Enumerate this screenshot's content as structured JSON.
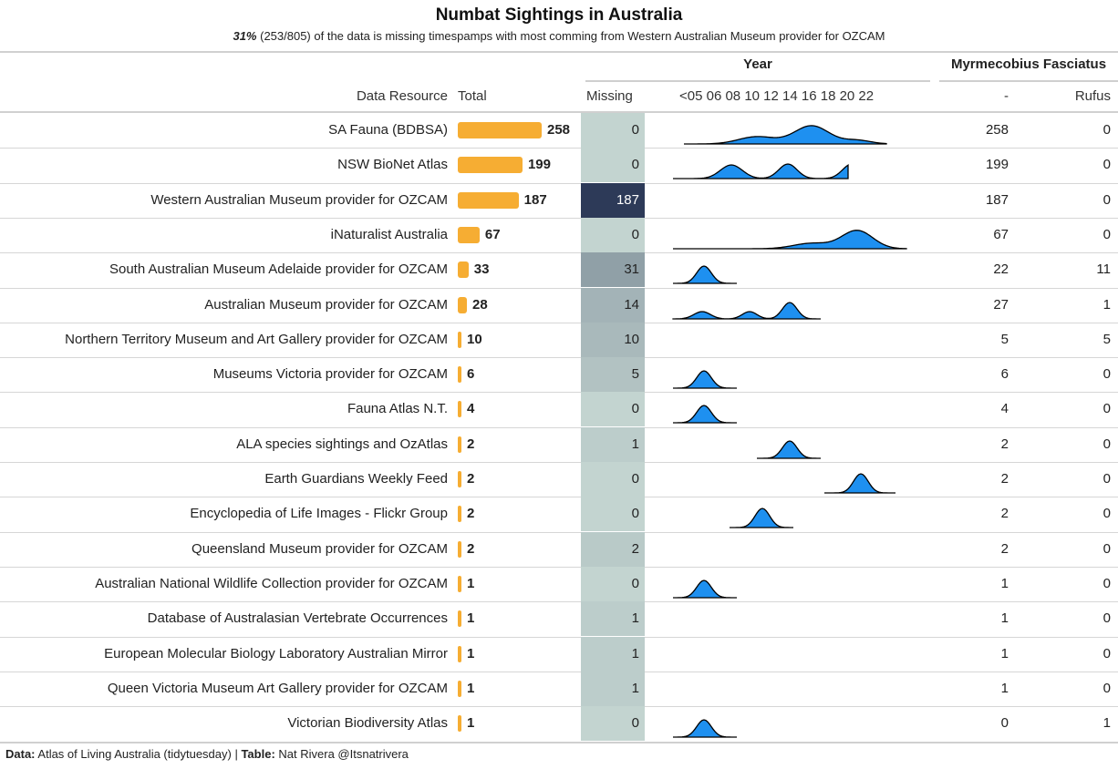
{
  "title": "Numbat Sightings in Australia",
  "subtitle": {
    "pct": "31%",
    "rest": " (253/805) of the data is missing timespamps with most comming from Western Australian Museum provider for OZCAM"
  },
  "headers": {
    "group_year": "Year",
    "group_species": "Myrmecobius Fasciatus",
    "data_resource": "Data Resource",
    "total": "Total",
    "missing": "Missing",
    "year_ticks": "<05 06 08 10 12 14 16 18 20 22",
    "dash": "-",
    "rufus": "Rufus"
  },
  "colors": {
    "bar": "#f6ad33",
    "spark_fill": "#1e90f0",
    "missing_base": "#c3d4d0",
    "missing_max": "#2d3a58"
  },
  "chart_data": {
    "type": "table",
    "title": "Numbat Sightings in Australia",
    "columns": [
      "Data Resource",
      "Total",
      "Missing",
      "Year",
      "-",
      "Rufus"
    ],
    "rows": [
      {
        "name": "SA Fauna (BDBSA)",
        "total": 258,
        "missing": 0,
        "dash": 258,
        "rufus": 0
      },
      {
        "name": "NSW BioNet Atlas",
        "total": 199,
        "missing": 0,
        "dash": 199,
        "rufus": 0
      },
      {
        "name": "Western Australian Museum provider for OZCAM",
        "total": 187,
        "missing": 187,
        "dash": 187,
        "rufus": 0
      },
      {
        "name": "iNaturalist Australia",
        "total": 67,
        "missing": 0,
        "dash": 67,
        "rufus": 0
      },
      {
        "name": "South Australian Museum Adelaide provider for OZCAM",
        "total": 33,
        "missing": 31,
        "dash": 22,
        "rufus": 11
      },
      {
        "name": "Australian Museum provider for OZCAM",
        "total": 28,
        "missing": 14,
        "dash": 27,
        "rufus": 1
      },
      {
        "name": "Northern Territory Museum and Art Gallery provider for OZCAM",
        "total": 10,
        "missing": 10,
        "dash": 5,
        "rufus": 5
      },
      {
        "name": "Museums Victoria provider for OZCAM",
        "total": 6,
        "missing": 5,
        "dash": 6,
        "rufus": 0
      },
      {
        "name": "Fauna Atlas N.T.",
        "total": 4,
        "missing": 0,
        "dash": 4,
        "rufus": 0
      },
      {
        "name": "ALA species sightings and OzAtlas",
        "total": 2,
        "missing": 1,
        "dash": 2,
        "rufus": 0
      },
      {
        "name": "Earth Guardians Weekly Feed",
        "total": 2,
        "missing": 0,
        "dash": 2,
        "rufus": 0
      },
      {
        "name": "Encyclopedia of Life Images - Flickr Group",
        "total": 2,
        "missing": 0,
        "dash": 2,
        "rufus": 0
      },
      {
        "name": "Queensland Museum provider for OZCAM",
        "total": 2,
        "missing": 2,
        "dash": 2,
        "rufus": 0
      },
      {
        "name": "Australian National Wildlife Collection provider for OZCAM",
        "total": 1,
        "missing": 0,
        "dash": 1,
        "rufus": 0
      },
      {
        "name": "Database of Australasian Vertebrate Occurrences",
        "total": 1,
        "missing": 1,
        "dash": 1,
        "rufus": 0
      },
      {
        "name": "European Molecular Biology Laboratory Australian Mirror",
        "total": 1,
        "missing": 1,
        "dash": 1,
        "rufus": 0
      },
      {
        "name": "Queen Victoria Museum Art Gallery provider for OZCAM",
        "total": 1,
        "missing": 1,
        "dash": 1,
        "rufus": 0
      },
      {
        "name": "Victorian Biodiversity Atlas",
        "total": 1,
        "missing": 0,
        "dash": 0,
        "rufus": 1
      }
    ]
  },
  "footer": {
    "data_label": "Data:",
    "data_value": " Atlas of Living Australia (tidytuesday) | ",
    "table_label": "Table:",
    "table_value": " Nat Rivera @Itsnatrivera"
  }
}
